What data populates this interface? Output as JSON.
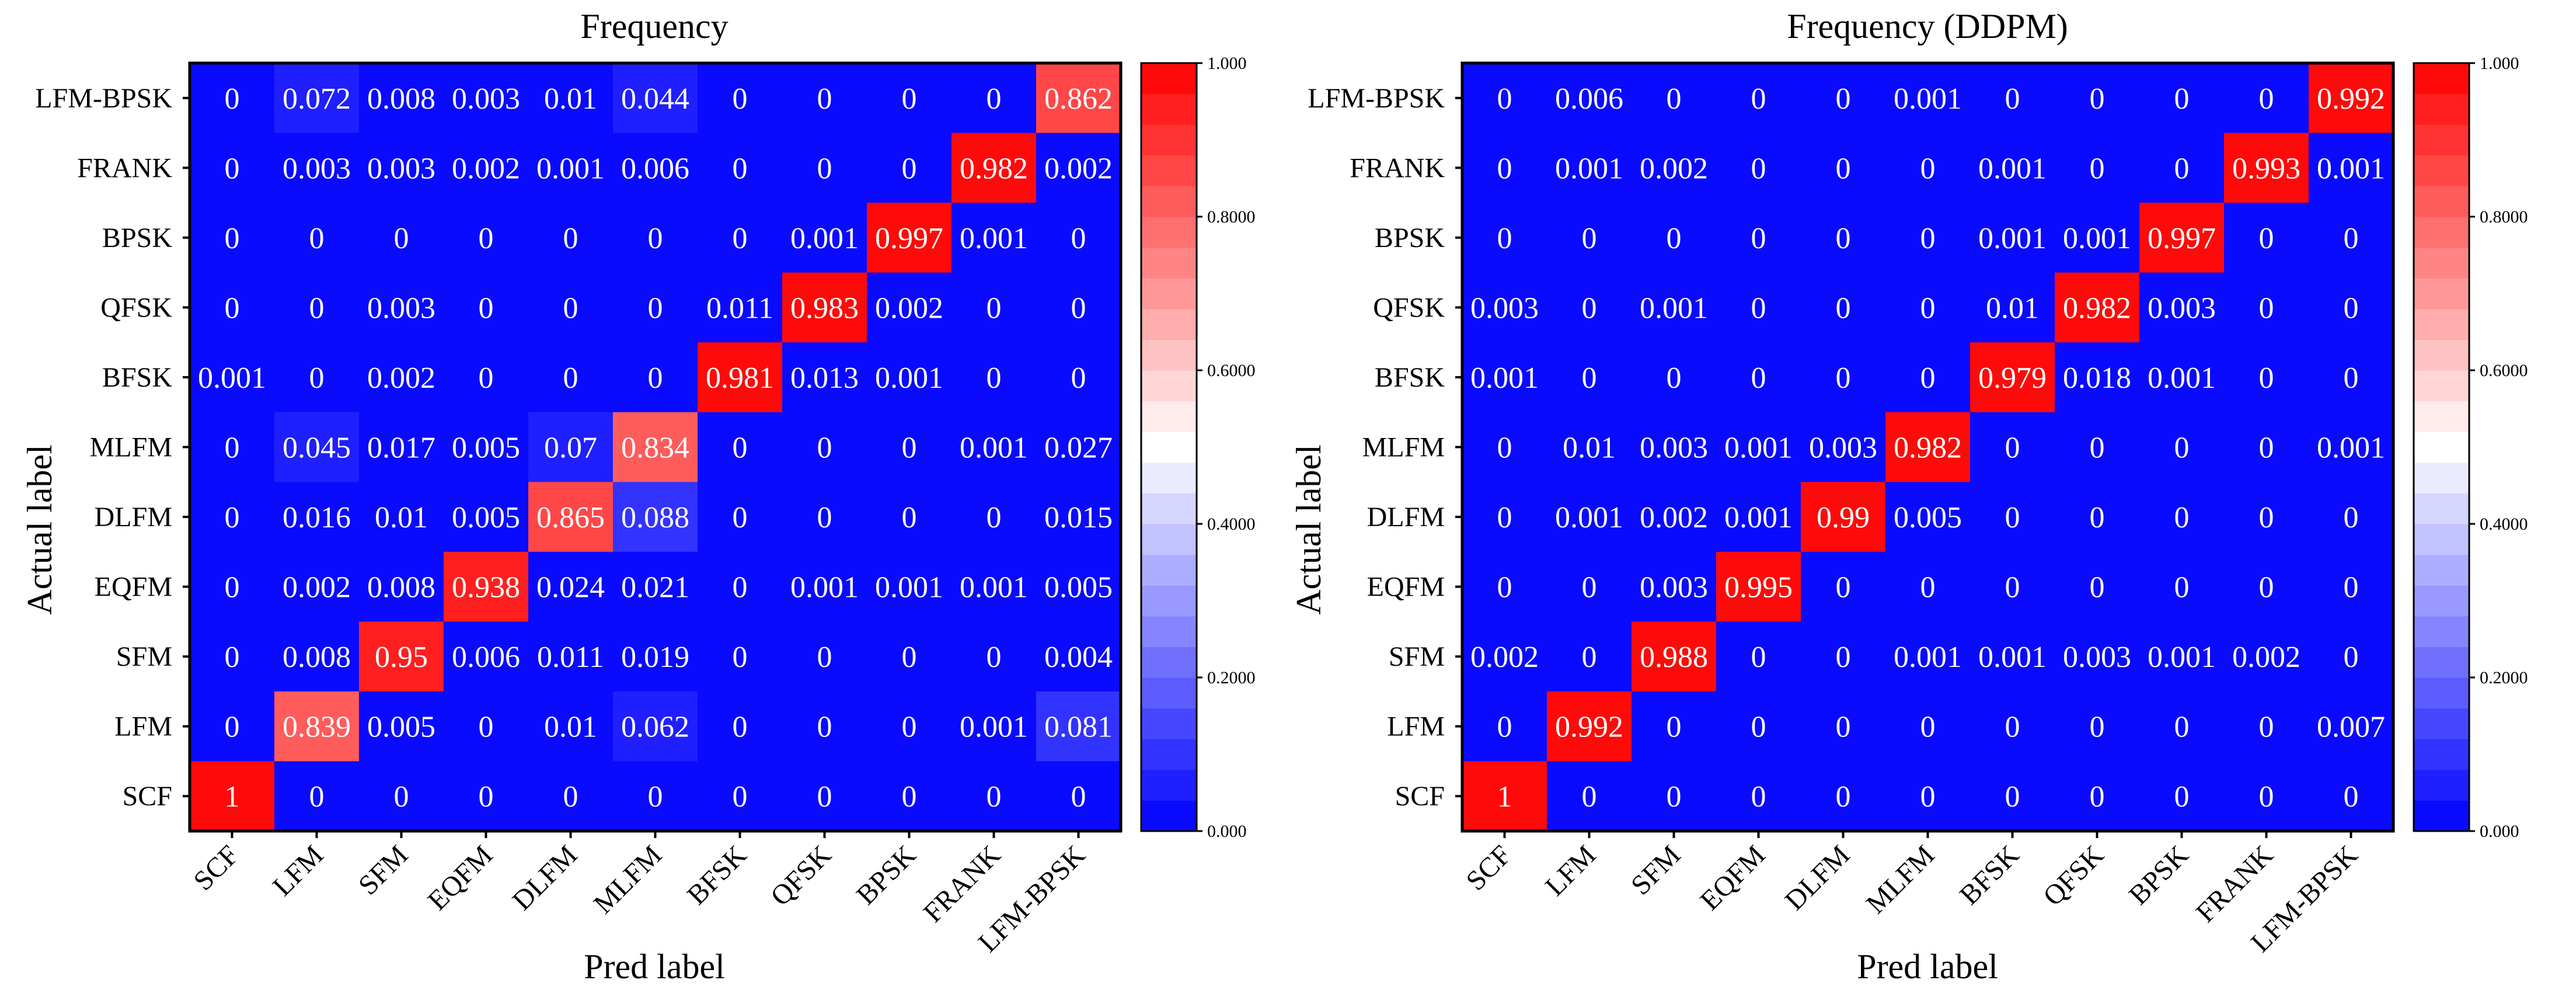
{
  "chart_data": [
    {
      "type": "heatmap",
      "title": "Frequency",
      "xlabel": "Pred label",
      "ylabel": "Actual label",
      "x_categories": [
        "SCF",
        "LFM",
        "SFM",
        "EQFM",
        "DLFM",
        "MLFM",
        "BFSK",
        "QFSK",
        "BPSK",
        "FRANK",
        "LFM-BPSK"
      ],
      "y_categories": [
        "LFM-BPSK",
        "FRANK",
        "BPSK",
        "QFSK",
        "BFSK",
        "MLFM",
        "DLFM",
        "EQFM",
        "SFM",
        "LFM",
        "SCF"
      ],
      "values": [
        [
          "0",
          "0.072",
          "0.008",
          "0.003",
          "0.01",
          "0.044",
          "0",
          "0",
          "0",
          "0",
          "0.862"
        ],
        [
          "0",
          "0.003",
          "0.003",
          "0.002",
          "0.001",
          "0.006",
          "0",
          "0",
          "0",
          "0.982",
          "0.002"
        ],
        [
          "0",
          "0",
          "0",
          "0",
          "0",
          "0",
          "0",
          "0.001",
          "0.997",
          "0.001",
          "0"
        ],
        [
          "0",
          "0",
          "0.003",
          "0",
          "0",
          "0",
          "0.011",
          "0.983",
          "0.002",
          "0",
          "0"
        ],
        [
          "0.001",
          "0",
          "0.002",
          "0",
          "0",
          "0",
          "0.981",
          "0.013",
          "0.001",
          "0",
          "0"
        ],
        [
          "0",
          "0.045",
          "0.017",
          "0.005",
          "0.07",
          "0.834",
          "0",
          "0",
          "0",
          "0.001",
          "0.027"
        ],
        [
          "0",
          "0.016",
          "0.01",
          "0.005",
          "0.865",
          "0.088",
          "0",
          "0",
          "0",
          "0",
          "0.015"
        ],
        [
          "0",
          "0.002",
          "0.008",
          "0.938",
          "0.024",
          "0.021",
          "0",
          "0.001",
          "0.001",
          "0.001",
          "0.005"
        ],
        [
          "0",
          "0.008",
          "0.95",
          "0.006",
          "0.011",
          "0.019",
          "0",
          "0",
          "0",
          "0",
          "0.004"
        ],
        [
          "0",
          "0.839",
          "0.005",
          "0",
          "0.01",
          "0.062",
          "0",
          "0",
          "0",
          "0.001",
          "0.081"
        ],
        [
          "1",
          "0",
          "0",
          "0",
          "0",
          "0",
          "0",
          "0",
          "0",
          "0",
          "0"
        ]
      ],
      "colorbar": {
        "min": 0,
        "max": 1,
        "ticks": [
          "0.000",
          "0.2000",
          "0.4000",
          "0.6000",
          "0.8000",
          "1.000"
        ],
        "tick_values": [
          0,
          0.2,
          0.4,
          0.6,
          0.8,
          1.0
        ],
        "levels": 25
      },
      "colormap": {
        "low": "#0000ff",
        "mid": "#ffffff",
        "high": "#ff0000"
      }
    },
    {
      "type": "heatmap",
      "title": "Frequency (DDPM)",
      "xlabel": "Pred label",
      "ylabel": "Actual label",
      "x_categories": [
        "SCF",
        "LFM",
        "SFM",
        "EQFM",
        "DLFM",
        "MLFM",
        "BFSK",
        "QFSK",
        "BPSK",
        "FRANK",
        "LFM-BPSK"
      ],
      "y_categories": [
        "LFM-BPSK",
        "FRANK",
        "BPSK",
        "QFSK",
        "BFSK",
        "MLFM",
        "DLFM",
        "EQFM",
        "SFM",
        "LFM",
        "SCF"
      ],
      "values": [
        [
          "0",
          "0.006",
          "0",
          "0",
          "0",
          "0.001",
          "0",
          "0",
          "0",
          "0",
          "0.992"
        ],
        [
          "0",
          "0.001",
          "0.002",
          "0",
          "0",
          "0",
          "0.001",
          "0",
          "0",
          "0.993",
          "0.001"
        ],
        [
          "0",
          "0",
          "0",
          "0",
          "0",
          "0",
          "0.001",
          "0.001",
          "0.997",
          "0",
          "0"
        ],
        [
          "0.003",
          "0",
          "0.001",
          "0",
          "0",
          "0",
          "0.01",
          "0.982",
          "0.003",
          "0",
          "0"
        ],
        [
          "0.001",
          "0",
          "0",
          "0",
          "0",
          "0",
          "0.979",
          "0.018",
          "0.001",
          "0",
          "0"
        ],
        [
          "0",
          "0.01",
          "0.003",
          "0.001",
          "0.003",
          "0.982",
          "0",
          "0",
          "0",
          "0",
          "0.001"
        ],
        [
          "0",
          "0.001",
          "0.002",
          "0.001",
          "0.99",
          "0.005",
          "0",
          "0",
          "0",
          "0",
          "0"
        ],
        [
          "0",
          "0",
          "0.003",
          "0.995",
          "0",
          "0",
          "0",
          "0",
          "0",
          "0",
          "0"
        ],
        [
          "0.002",
          "0",
          "0.988",
          "0",
          "0",
          "0.001",
          "0.001",
          "0.003",
          "0.001",
          "0.002",
          "0"
        ],
        [
          "0",
          "0.992",
          "0",
          "0",
          "0",
          "0",
          "0",
          "0",
          "0",
          "0",
          "0.007"
        ],
        [
          "1",
          "0",
          "0",
          "0",
          "0",
          "0",
          "0",
          "0",
          "0",
          "0",
          "0"
        ]
      ],
      "colorbar": {
        "min": 0,
        "max": 1,
        "ticks": [
          "0.000",
          "0.2000",
          "0.4000",
          "0.6000",
          "0.8000",
          "1.000"
        ],
        "tick_values": [
          0,
          0.2,
          0.4,
          0.6,
          0.8,
          1.0
        ],
        "levels": 25
      },
      "colormap": {
        "low": "#0000ff",
        "mid": "#ffffff",
        "high": "#ff0000"
      }
    }
  ]
}
